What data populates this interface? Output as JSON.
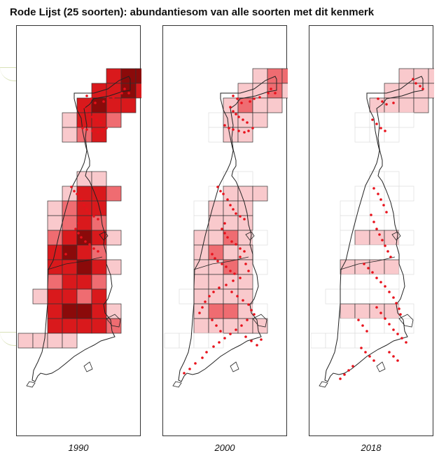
{
  "title": "Rode Lijst (25 soorten): abundantiesom van alle soorten met dit kenmerk",
  "colors": {
    "level1": "#f9c9cc",
    "level2": "#ef6c71",
    "level3": "#d9191c",
    "level4": "#8b0a0a",
    "point": "#e8111b",
    "outline": "#222222",
    "grid_empty": "#dddddd",
    "grid_filled": "#333333"
  },
  "panels": [
    {
      "year": "1990",
      "mode": "heavy"
    },
    {
      "year": "2000",
      "mode": "medium"
    },
    {
      "year": "2018",
      "mode": "light"
    }
  ]
}
